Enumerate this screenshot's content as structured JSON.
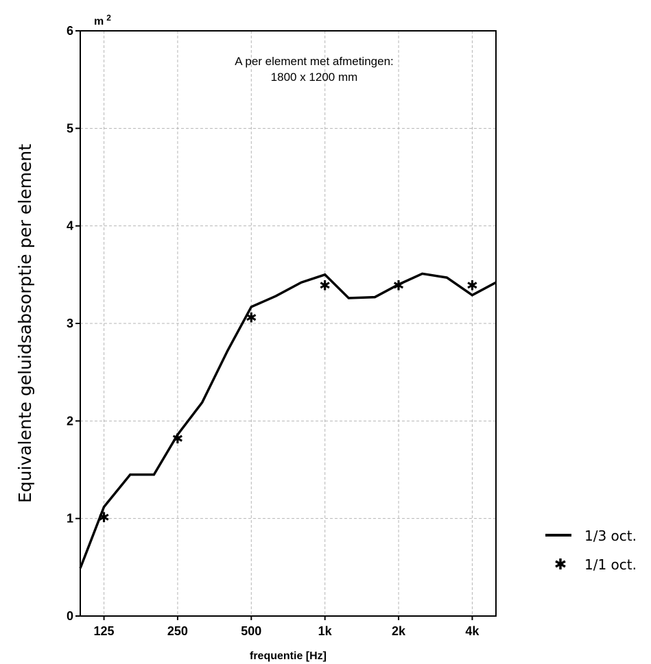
{
  "chart_data": {
    "type": "line",
    "ylabel": "Equivalente geluidsabsorptie per element",
    "yunit": "m",
    "yunit_sup": "2",
    "xlabel": "frequentie [Hz]",
    "annotation": [
      "A per element met afmetingen:",
      "1800 x 1200 mm"
    ],
    "ylim": [
      0,
      6
    ],
    "yticks": [
      0,
      1,
      2,
      3,
      4,
      5,
      6
    ],
    "xscale": "log",
    "xlim": [
      100,
      5000
    ],
    "xticks": [
      {
        "value": 125,
        "label": "125"
      },
      {
        "value": 250,
        "label": "250"
      },
      {
        "value": 500,
        "label": "500"
      },
      {
        "value": 1000,
        "label": "1k"
      },
      {
        "value": 2000,
        "label": "2k"
      },
      {
        "value": 4000,
        "label": "4k"
      }
    ],
    "grid": true,
    "legend_position": "right",
    "series": [
      {
        "name": "1/3 oct.",
        "style": "line",
        "x": [
          100,
          125,
          160,
          200,
          250,
          315,
          400,
          500,
          630,
          800,
          1000,
          1250,
          1600,
          2000,
          2500,
          3150,
          4000,
          5000
        ],
        "y": [
          0.49,
          1.12,
          1.45,
          1.45,
          1.86,
          2.19,
          2.72,
          3.17,
          3.28,
          3.42,
          3.5,
          3.26,
          3.27,
          3.4,
          3.51,
          3.47,
          3.29,
          3.42
        ]
      },
      {
        "name": "1/1 oct.",
        "style": "marker",
        "x": [
          125,
          250,
          500,
          1000,
          2000,
          4000
        ],
        "y": [
          1.01,
          1.82,
          3.06,
          3.39,
          3.39,
          3.39
        ]
      }
    ]
  },
  "colors": {
    "line": "#000000",
    "grid": "#b5b5b5"
  }
}
